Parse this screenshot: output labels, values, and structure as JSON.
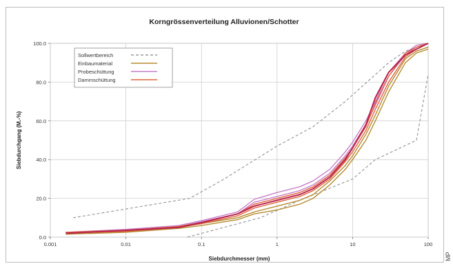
{
  "chart_data": {
    "type": "line",
    "title": "Korngrössenverteilung Alluvionen/Schotter",
    "xlabel": "Siebdurchmesser (mm)",
    "ylabel": "Siebdurchgang (M.-%)",
    "xscale": "log",
    "xlim": [
      0.001,
      100
    ],
    "ylim": [
      0,
      100
    ],
    "x_ticks": [
      0.001,
      0.01,
      0.1,
      1,
      10,
      100
    ],
    "x_tick_labels": [
      "0.001",
      "0.01",
      "0.1",
      "1",
      "10",
      "100"
    ],
    "y_ticks": [
      0,
      20,
      40,
      60,
      80,
      100
    ],
    "y_tick_labels": [
      "0.0",
      "20.0",
      "40.0",
      "60.0",
      "80.0",
      "100.0"
    ],
    "grid": true,
    "legend_position": "top-left",
    "series": [
      {
        "name": "Sollwertbereich",
        "color": "#9a9a9a",
        "style": "dashed",
        "lines": [
          [
            [
              0.002,
              10
            ],
            [
              0.07,
              20
            ],
            [
              0.2,
              30
            ],
            [
              1,
              47
            ],
            [
              3,
              57
            ],
            [
              8,
              70
            ],
            [
              30,
              90
            ],
            [
              50,
              96
            ],
            [
              100,
              100
            ]
          ],
          [
            [
              0.065,
              0
            ],
            [
              0.6,
              10
            ],
            [
              2,
              19
            ],
            [
              10,
              30
            ],
            [
              20,
              40
            ],
            [
              70,
              50
            ],
            [
              100,
              84
            ]
          ]
        ]
      },
      {
        "name": "Einbaumaterial",
        "color": "#b58a2e",
        "style": "solid",
        "lines": [
          [
            [
              0.0016,
              1.5
            ],
            [
              0.01,
              2.5
            ],
            [
              0.05,
              4.5
            ],
            [
              0.1,
              6
            ],
            [
              0.3,
              9
            ],
            [
              0.5,
              12
            ],
            [
              1,
              14
            ],
            [
              2,
              17
            ],
            [
              3,
              20
            ],
            [
              5,
              27
            ],
            [
              8,
              35
            ],
            [
              10,
              40
            ],
            [
              15,
              50
            ],
            [
              20,
              60
            ],
            [
              30,
              75
            ],
            [
              50,
              90
            ],
            [
              70,
              95
            ],
            [
              100,
              97
            ]
          ],
          [
            [
              0.0016,
              2
            ],
            [
              0.01,
              3
            ],
            [
              0.05,
              5
            ],
            [
              0.1,
              7
            ],
            [
              0.3,
              10
            ],
            [
              0.5,
              13
            ],
            [
              1,
              16
            ],
            [
              2,
              19
            ],
            [
              3,
              22
            ],
            [
              5,
              29
            ],
            [
              8,
              37
            ],
            [
              10,
              42
            ],
            [
              15,
              53
            ],
            [
              20,
              63
            ],
            [
              30,
              78
            ],
            [
              50,
              92
            ],
            [
              70,
              96
            ],
            [
              100,
              98
            ]
          ]
        ]
      },
      {
        "name": "Probeschüttung",
        "color": "#c780c9",
        "style": "solid",
        "lines": [
          [
            [
              0.0016,
              2
            ],
            [
              0.01,
              3.5
            ],
            [
              0.05,
              5.5
            ],
            [
              0.1,
              8
            ],
            [
              0.3,
              12
            ],
            [
              0.5,
              18
            ],
            [
              1,
              21
            ],
            [
              2,
              24
            ],
            [
              3,
              27
            ],
            [
              5,
              33
            ],
            [
              8,
              42
            ],
            [
              10,
              47
            ],
            [
              15,
              58
            ],
            [
              20,
              68
            ],
            [
              30,
              83
            ],
            [
              50,
              94
            ],
            [
              70,
              98
            ],
            [
              100,
              100
            ]
          ],
          [
            [
              0.0016,
              2.5
            ],
            [
              0.01,
              4
            ],
            [
              0.05,
              6
            ],
            [
              0.1,
              8.5
            ],
            [
              0.3,
              13
            ],
            [
              0.5,
              19.5
            ],
            [
              1,
              23
            ],
            [
              2,
              26
            ],
            [
              3,
              29
            ],
            [
              5,
              35
            ],
            [
              8,
              44
            ],
            [
              10,
              49
            ],
            [
              15,
              60
            ],
            [
              20,
              70
            ],
            [
              30,
              85
            ],
            [
              50,
              95
            ],
            [
              70,
              99
            ],
            [
              100,
              100
            ]
          ]
        ]
      },
      {
        "name": "Dammschüttung",
        "color": "#e0603c",
        "style": "solid",
        "lines": [
          [
            [
              0.0016,
              2
            ],
            [
              0.01,
              3
            ],
            [
              0.05,
              5
            ],
            [
              0.1,
              7
            ],
            [
              0.3,
              11
            ],
            [
              0.5,
              15
            ],
            [
              1,
              18
            ],
            [
              2,
              21
            ],
            [
              3,
              24
            ],
            [
              5,
              30
            ],
            [
              8,
              39
            ],
            [
              10,
              44
            ],
            [
              15,
              55
            ],
            [
              20,
              66
            ],
            [
              30,
              80
            ],
            [
              50,
              93
            ],
            [
              70,
              97
            ],
            [
              100,
              100
            ]
          ],
          [
            [
              0.0016,
              2.5
            ],
            [
              0.01,
              3.5
            ],
            [
              0.05,
              5.5
            ],
            [
              0.1,
              7.5
            ],
            [
              0.3,
              12
            ],
            [
              0.5,
              17
            ],
            [
              1,
              20
            ],
            [
              2,
              23
            ],
            [
              3,
              26
            ],
            [
              5,
              32
            ],
            [
              8,
              41
            ],
            [
              10,
              46
            ],
            [
              15,
              57
            ],
            [
              20,
              69
            ],
            [
              30,
              83
            ],
            [
              50,
              95
            ],
            [
              70,
              98
            ],
            [
              100,
              100
            ]
          ]
        ]
      }
    ],
    "highlight_series": {
      "name": "",
      "color": "#b8234a",
      "style": "solid",
      "points": [
        [
          0.0016,
          2
        ],
        [
          0.01,
          3.5
        ],
        [
          0.05,
          5
        ],
        [
          0.1,
          7.5
        ],
        [
          0.3,
          12
        ],
        [
          0.5,
          16
        ],
        [
          1,
          19
        ],
        [
          2,
          22
        ],
        [
          3,
          25
        ],
        [
          5,
          31
        ],
        [
          8,
          40
        ],
        [
          10,
          46
        ],
        [
          15,
          58
        ],
        [
          20,
          72
        ],
        [
          30,
          85
        ],
        [
          50,
          94
        ],
        [
          70,
          97
        ],
        [
          100,
          100
        ]
      ]
    }
  },
  "side_text": "MP"
}
